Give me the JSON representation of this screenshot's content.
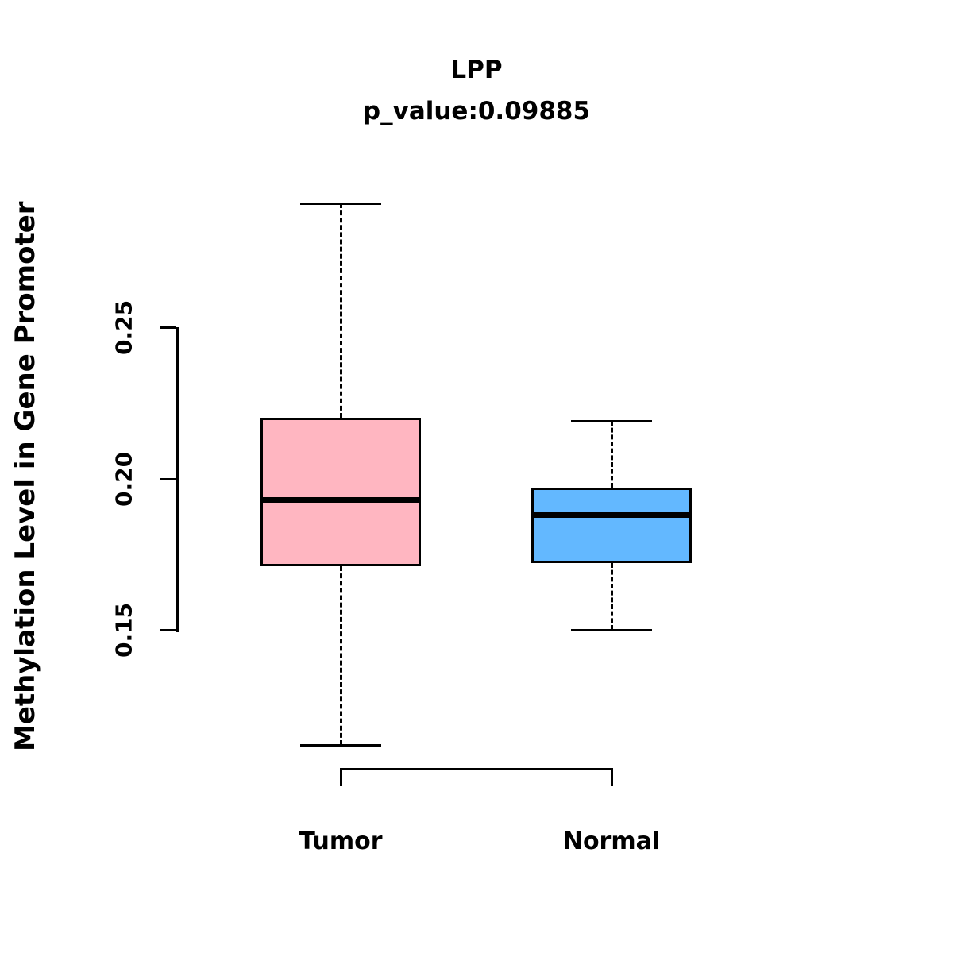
{
  "chart_data": {
    "type": "boxplot",
    "title": "LPP",
    "subtitle": "p_value:0.09885",
    "ylabel": "Methylation Level in Gene Promoter",
    "xlabel": "",
    "yticks": [
      0.15,
      0.2,
      0.25
    ],
    "axis_range": [
      0.15,
      0.25
    ],
    "grid": false,
    "legend": "none",
    "categories": [
      "Tumor",
      "Normal"
    ],
    "series": [
      {
        "name": "Tumor",
        "color": "#FFB6C1",
        "whisker_low": 0.112,
        "q1": 0.171,
        "median": 0.193,
        "q3": 0.22,
        "whisker_high": 0.291
      },
      {
        "name": "Normal",
        "color": "#63B8FF",
        "whisker_low": 0.15,
        "q1": 0.172,
        "median": 0.188,
        "q3": 0.197,
        "whisker_high": 0.219
      }
    ],
    "line_color": "#000000"
  }
}
